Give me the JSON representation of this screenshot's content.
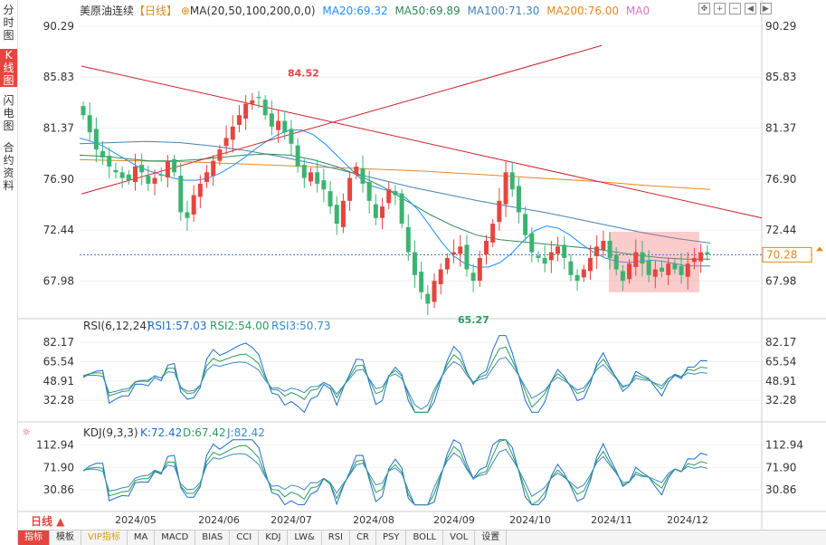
{
  "left_tabs": [
    {
      "label": "分时图",
      "active": false
    },
    {
      "label": "K线图",
      "active": true
    },
    {
      "label": "闪电图",
      "active": false
    },
    {
      "label": "合约资料",
      "active": false
    }
  ],
  "header": {
    "symbol": "美原油连续",
    "period": "【日线】",
    "ma_label": "MA(20,50,100,200,0,0)",
    "ma20": "MA20:69.32",
    "ma50": "MA50:69.89",
    "ma100": "MA100:71.30",
    "ma200": "MA200:76.00",
    "ma0": "MA0"
  },
  "colors": {
    "up": "#e4463f",
    "down": "#3cb371",
    "ma20": "#1e90ff",
    "ma50": "#2e8b57",
    "ma100": "#4682b4",
    "ma200": "#e08a20",
    "ma0": "#e070d0",
    "trend": "#d0202a",
    "rsi1": "#1e6ec8",
    "rsi2": "#2e9c5c",
    "rsi3": "#3a8ac8"
  },
  "price_panel": {
    "ticks": [
      "90.29",
      "85.83",
      "81.37",
      "76.90",
      "72.44",
      "67.98"
    ],
    "current_price": "70.28",
    "high_label": "84.52",
    "low_label": "65.27"
  },
  "rsi_panel": {
    "label": "RSI(6,12,24)",
    "rsi1": "RSI1:57.03",
    "rsi2": "RSI2:54.00",
    "rsi3": "RSI3:50.73",
    "ticks": [
      "82.17",
      "65.54",
      "48.91",
      "32.28"
    ]
  },
  "kdj_panel": {
    "label": "KDJ(9,3,3)",
    "k": "K:72.42",
    "d": "D:67.42",
    "j": "J:82.42",
    "ticks": [
      "112.94",
      "71.90",
      "30.86"
    ]
  },
  "x_axis": [
    "2024/05",
    "2024/06",
    "2024/07",
    "2024/08",
    "2024/09",
    "2024/10",
    "2024/11",
    "2024/12"
  ],
  "period_selector": "日线 ▲",
  "toolbar": [
    "指标",
    "模板",
    "VIP指标",
    "MA",
    "MACD",
    "BIAS",
    "CCI",
    "KDJ",
    "LW&",
    "RSI",
    "CR",
    "PSY",
    "BOLL",
    "VOL",
    "设置"
  ],
  "chart_data": {
    "type": "candlestick",
    "title": "美原油连续【日线】",
    "ylim": [
      65.0,
      91.0
    ],
    "x_labels": [
      "2024/05",
      "2024/06",
      "2024/07",
      "2024/08",
      "2024/09",
      "2024/10",
      "2024/11",
      "2024/12"
    ],
    "close_path": [
      82.5,
      81.0,
      79.5,
      78.8,
      78.0,
      77.5,
      77.0,
      76.8,
      78.0,
      77.5,
      76.5,
      77.0,
      77.2,
      78.5,
      77.5,
      74.0,
      73.5,
      75.5,
      76.5,
      77.5,
      78.5,
      79.5,
      80.5,
      81.5,
      82.5,
      83.5,
      83.8,
      84.0,
      82.5,
      81.5,
      82.0,
      81.0,
      80.0,
      78.0,
      77.0,
      77.5,
      76.5,
      76.0,
      74.5,
      73.0,
      75.0,
      77.0,
      78.0,
      76.5,
      75.0,
      73.5,
      74.5,
      76.0,
      75.5,
      73.0,
      70.5,
      68.5,
      67.0,
      66.0,
      68.0,
      69.0,
      70.0,
      70.5,
      71.0,
      69.0,
      68.0,
      70.0,
      71.5,
      73.0,
      75.0,
      77.5,
      76.0,
      74.0,
      72.0,
      70.5,
      70.0,
      69.5,
      70.5,
      71.0,
      70.0,
      68.5,
      68.0,
      69.0,
      70.0,
      71.0,
      71.5,
      70.0,
      69.0,
      68.0,
      69.5,
      70.5,
      69.5,
      68.5,
      69.0,
      68.8,
      69.5,
      69.0,
      68.5,
      69.5,
      70.0,
      70.5,
      70.3
    ],
    "ma20": [
      80.5,
      80.2,
      79.8,
      79.2,
      78.6,
      78.0,
      77.6,
      77.3,
      77.0,
      76.8,
      76.8,
      77.0,
      77.4,
      78.0,
      78.7,
      79.5,
      80.2,
      80.8,
      81.2,
      81.2,
      80.8,
      80.0,
      79.0,
      78.0,
      77.0,
      76.3,
      76.0,
      75.8,
      75.2,
      74.2,
      72.8,
      71.4,
      70.2,
      69.5,
      69.2,
      69.2,
      69.6,
      70.4,
      71.5,
      72.4,
      72.8,
      72.6,
      72.0,
      71.2,
      70.5,
      70.0,
      69.7,
      69.6,
      69.7,
      69.8,
      69.7,
      69.5,
      69.3,
      69.3,
      69.3
    ],
    "ma50": [
      79.0,
      78.9,
      78.7,
      78.5,
      78.5,
      78.6,
      78.8,
      79.0,
      79.1,
      79.0,
      78.6,
      78.0,
      77.2,
      76.2,
      75.0,
      73.8,
      72.8,
      72.0,
      71.6,
      71.4,
      71.2,
      71.0,
      70.8,
      70.5,
      70.2,
      70.0,
      69.9,
      69.9
    ],
    "ma100": [
      80.0,
      80.1,
      80.2,
      80.1,
      79.8,
      79.4,
      78.9,
      78.3,
      77.6,
      76.9,
      76.2,
      75.6,
      75.0,
      74.5,
      74.0,
      73.4,
      72.8,
      72.2,
      71.7,
      71.3
    ],
    "ma200": [
      78.6,
      78.5,
      78.4,
      78.2,
      78.0,
      77.8,
      77.6,
      77.3,
      77.0,
      76.7,
      76.3,
      76.0
    ]
  }
}
